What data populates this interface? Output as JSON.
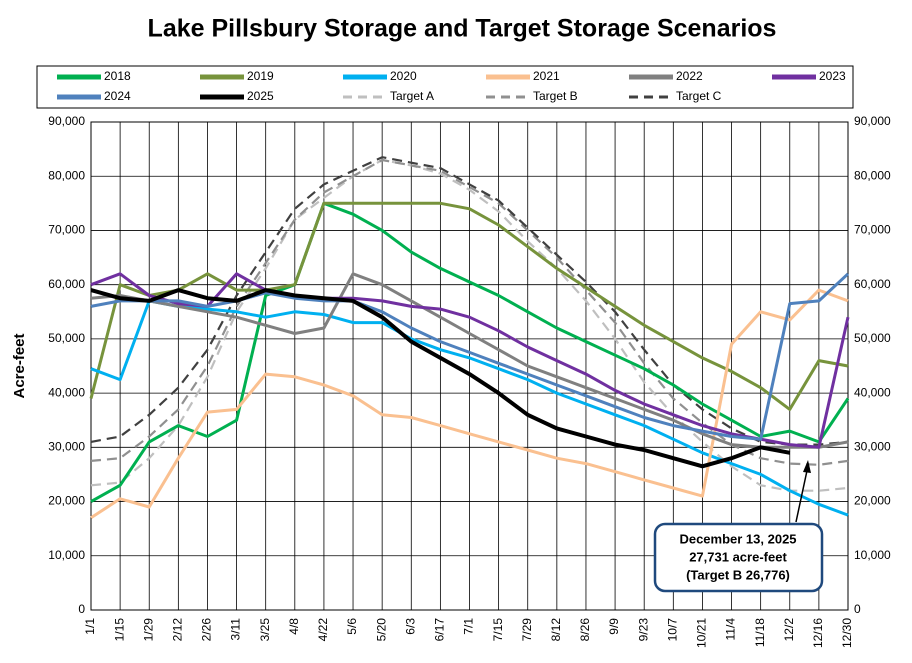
{
  "chart_data": {
    "type": "line",
    "title": "Lake Pillsbury Storage and Target Storage Scenarios",
    "y_label": "Acre-feet",
    "categories": [
      "1/1",
      "1/15",
      "1/29",
      "2/12",
      "2/26",
      "3/11",
      "3/25",
      "4/8",
      "4/22",
      "5/6",
      "5/20",
      "6/3",
      "6/17",
      "7/1",
      "7/15",
      "7/29",
      "8/12",
      "8/26",
      "9/9",
      "9/23",
      "10/7",
      "10/21",
      "11/4",
      "11/18",
      "12/2",
      "12/16",
      "12/30"
    ],
    "ylim": [
      0,
      90000
    ],
    "yticks": [
      {
        "value": 0,
        "label": "0"
      },
      {
        "value": 10000,
        "label": "10,000"
      },
      {
        "value": 20000,
        "label": "20,000"
      },
      {
        "value": 30000,
        "label": "30,000"
      },
      {
        "value": 40000,
        "label": "40,000"
      },
      {
        "value": 50000,
        "label": "50,000"
      },
      {
        "value": 60000,
        "label": "60,000"
      },
      {
        "value": 70000,
        "label": "70,000"
      },
      {
        "value": 80000,
        "label": "80,000"
      },
      {
        "value": 90000,
        "label": "90,000"
      }
    ],
    "grid": true,
    "series": [
      {
        "name": "2018",
        "color": "#00b050",
        "values": [
          20000,
          23000,
          31000,
          34000,
          32000,
          35000,
          58000,
          60000,
          75000,
          73000,
          70000,
          66000,
          63000,
          60500,
          58000,
          55000,
          52000,
          49500,
          47000,
          44500,
          41500,
          38000,
          35000,
          32000,
          33000,
          31000,
          39000
        ]
      },
      {
        "name": "2019",
        "color": "#77933c",
        "values": [
          39000,
          60000,
          58000,
          59000,
          62000,
          59000,
          59000,
          60000,
          75000,
          75000,
          75000,
          75000,
          75000,
          74000,
          71000,
          67000,
          63000,
          59500,
          56000,
          52500,
          49500,
          46500,
          44000,
          41000,
          37000,
          46000,
          45000
        ]
      },
      {
        "name": "2020",
        "color": "#00b0f0",
        "values": [
          44500,
          42500,
          57000,
          56000,
          55500,
          55000,
          54000,
          55000,
          54500,
          53000,
          53000,
          50000,
          48000,
          46500,
          44500,
          42500,
          40000,
          38000,
          36000,
          34000,
          31500,
          29000,
          27000,
          25000,
          22000,
          19500,
          17500
        ]
      },
      {
        "name": "2021",
        "color": "#fac090",
        "values": [
          17000,
          20500,
          19000,
          28000,
          36500,
          37000,
          43500,
          43000,
          41500,
          39500,
          36000,
          35500,
          34000,
          32500,
          31000,
          29500,
          28000,
          27000,
          25500,
          24000,
          22500,
          21000,
          49000,
          55000,
          53500,
          59000,
          57000
        ]
      },
      {
        "name": "2022",
        "color": "#808080",
        "values": [
          57500,
          58000,
          57000,
          56000,
          55000,
          54000,
          52500,
          51000,
          52000,
          62000,
          60000,
          57000,
          54000,
          51000,
          48000,
          45000,
          43000,
          41000,
          39000,
          37000,
          35000,
          32500,
          30500,
          30000,
          30000,
          30000,
          31000
        ]
      },
      {
        "name": "2023",
        "color": "#7030a0",
        "values": [
          60000,
          62000,
          58000,
          56500,
          56000,
          62000,
          59000,
          58000,
          57500,
          57500,
          57000,
          56000,
          55500,
          54000,
          51500,
          48500,
          46000,
          43500,
          40500,
          38000,
          36000,
          34000,
          32500,
          31500,
          30500,
          30000,
          54000
        ]
      },
      {
        "name": "2024",
        "color": "#4f81bd",
        "values": [
          56000,
          57000,
          57000,
          57000,
          56000,
          57000,
          58500,
          57500,
          57000,
          57000,
          55000,
          52000,
          49500,
          47500,
          45500,
          43500,
          41500,
          39500,
          37500,
          35500,
          34000,
          33000,
          32000,
          31500,
          56500,
          57000,
          62000
        ]
      },
      {
        "name": "2025",
        "color": "#000000",
        "values": [
          59000,
          57500,
          57000,
          59000,
          57500,
          57000,
          59000,
          58000,
          57500,
          57000,
          54000,
          49500,
          46500,
          43500,
          40000,
          36000,
          33500,
          32000,
          30500,
          29500,
          28000,
          26500,
          28000,
          30000,
          29000,
          null,
          null
        ]
      },
      {
        "name": "Target A",
        "color": "#bfbfbf",
        "dashed": true,
        "values": [
          23000,
          23500,
          28000,
          34000,
          43000,
          55000,
          63000,
          72000,
          76000,
          80000,
          83000,
          82000,
          80500,
          77500,
          73500,
          68000,
          63000,
          57000,
          50000,
          42000,
          36000,
          31000,
          26500,
          23000,
          22000,
          22000,
          22500
        ]
      },
      {
        "name": "Target B",
        "color": "#909090",
        "dashed": true,
        "values": [
          27500,
          28000,
          32000,
          37000,
          45000,
          56000,
          64000,
          72000,
          77000,
          80000,
          83000,
          82000,
          81000,
          78000,
          75000,
          70000,
          65000,
          59000,
          53000,
          45500,
          39000,
          34500,
          30500,
          28000,
          27000,
          26776,
          27500
        ]
      },
      {
        "name": "Target C",
        "color": "#404040",
        "dashed": true,
        "values": [
          31000,
          32000,
          36000,
          41000,
          48000,
          58000,
          66000,
          74000,
          78500,
          81000,
          83500,
          82500,
          81500,
          78500,
          75500,
          70500,
          65500,
          60500,
          55000,
          48000,
          41500,
          37000,
          33500,
          31000,
          30500,
          30500,
          31000
        ]
      }
    ],
    "annotation": [
      "December 13, 2025",
      "27,731 acre-feet",
      "(Target B 26,776)"
    ]
  }
}
